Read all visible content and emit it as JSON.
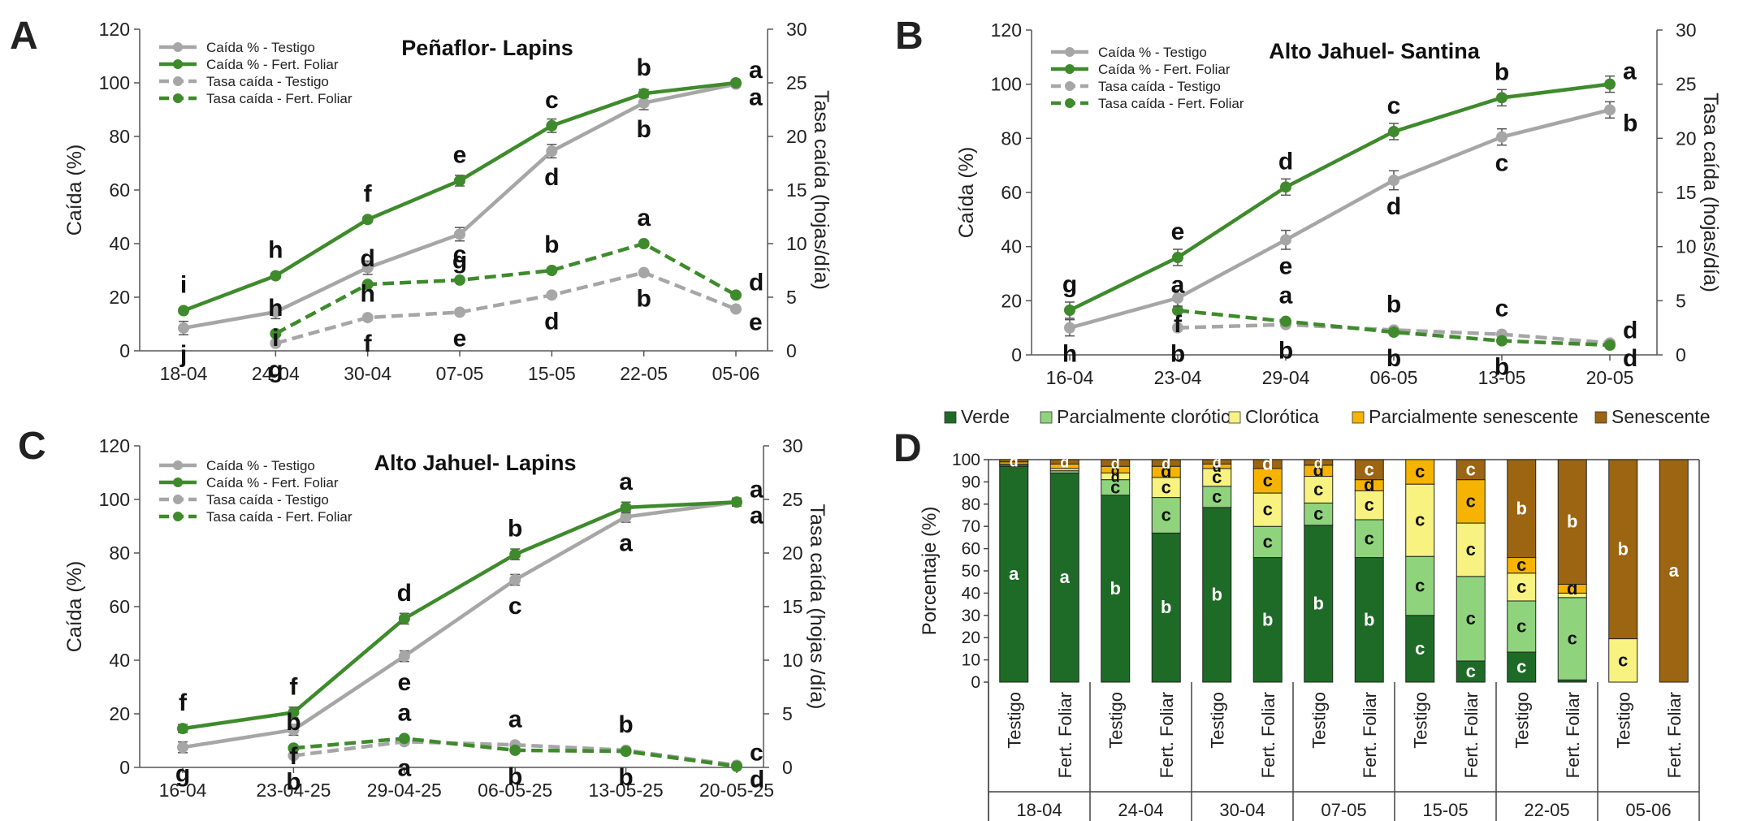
{
  "colors": {
    "testigo": "#a6a6a6",
    "fert": "#3e8a2c",
    "verde": "#1e6b27",
    "parcialmente_clorotica": "#8fd47d",
    "clorotica": "#f8f280",
    "parcialmente_senescente": "#f6b400",
    "senescente": "#9b6511"
  },
  "chart_data": [
    {
      "panel": "A",
      "type": "line",
      "title": "Peñaflor- Lapins",
      "xlabel": "",
      "ylabel": "Caída (%)",
      "y2label": "Tasa caída (hojas/día)",
      "ylim": [
        0,
        120
      ],
      "y2lim": [
        0,
        30
      ],
      "yticks": [
        0,
        20,
        40,
        60,
        80,
        100,
        120
      ],
      "y2ticks": [
        0,
        5,
        10,
        15,
        20,
        25,
        30
      ],
      "legend_position": "top-left",
      "categories": [
        "18-04",
        "24-04",
        "30-04",
        "07-05",
        "15-05",
        "22-05",
        "05-06"
      ],
      "series": [
        {
          "name": "Caída % - Testigo",
          "axis": "left",
          "style": "solid",
          "color": "testigo",
          "values": [
            8.5,
            14.5,
            31,
            43.5,
            74.5,
            92.5,
            99.5
          ],
          "errors": [
            2.5,
            2.5,
            2.5,
            2.5,
            2.5,
            2.5,
            1.0
          ],
          "labels": [
            "j",
            "i",
            "h",
            "g",
            "d",
            "b",
            "a"
          ]
        },
        {
          "name": "Caída % - Fert. Foliar",
          "axis": "left",
          "style": "solid",
          "color": "fert",
          "values": [
            15,
            28,
            49,
            63.5,
            84,
            96,
            100
          ],
          "errors": [
            1.0,
            1.0,
            1.0,
            2.0,
            2.5,
            1.5,
            1.0
          ],
          "labels": [
            "i",
            "h",
            "f",
            "e",
            "c",
            "b",
            "a"
          ]
        },
        {
          "name": "Tasa caída - Testigo",
          "axis": "right",
          "style": "dashed",
          "color": "testigo",
          "values": [
            null,
            0.7,
            3.1,
            3.6,
            5.2,
            7.3,
            3.9
          ],
          "labels": [
            null,
            "g",
            "f",
            "e",
            "d",
            "b",
            "e"
          ]
        },
        {
          "name": "Tasa caída - Fert. Foliar",
          "axis": "right",
          "style": "dashed",
          "color": "fert",
          "values": [
            null,
            1.6,
            6.2,
            6.6,
            7.5,
            10.0,
            5.2
          ],
          "labels": [
            null,
            "h",
            "d",
            "c",
            "b",
            "a",
            "d"
          ]
        }
      ]
    },
    {
      "panel": "B",
      "type": "line",
      "title": "Alto Jahuel- Santina",
      "xlabel": "",
      "ylabel": "Caída (%)",
      "y2label": "Tasa caída (hojas/día)",
      "ylim": [
        0,
        120
      ],
      "y2lim": [
        0,
        30
      ],
      "yticks": [
        0,
        20,
        40,
        60,
        80,
        100,
        120
      ],
      "y2ticks": [
        0,
        5,
        10,
        15,
        20,
        25,
        30
      ],
      "legend_position": "top-left",
      "categories": [
        "16-04",
        "23-04",
        "29-04",
        "06-05",
        "13-05",
        "20-05"
      ],
      "series": [
        {
          "name": "Caída % - Testigo",
          "axis": "left",
          "style": "solid",
          "color": "testigo",
          "values": [
            10,
            21,
            42.5,
            64.5,
            80.5,
            90.5
          ],
          "errors": [
            3.0,
            3.0,
            3.5,
            3.5,
            3.0,
            3.0
          ],
          "labels": [
            "h",
            "f",
            "e",
            "d",
            "c",
            "b"
          ]
        },
        {
          "name": "Caída % - Fert. Foliar",
          "axis": "left",
          "style": "solid",
          "color": "fert",
          "values": [
            16.5,
            36,
            62,
            82.5,
            95,
            100
          ],
          "errors": [
            3.0,
            3.0,
            3.0,
            3.0,
            3.0,
            3.0
          ],
          "labels": [
            "g",
            "e",
            "d",
            "c",
            "b",
            "a"
          ]
        },
        {
          "name": "Tasa caída - Testigo",
          "axis": "right",
          "style": "dashed",
          "color": "testigo",
          "values": [
            null,
            2.5,
            2.8,
            2.3,
            1.9,
            1.1
          ],
          "labels": [
            null,
            "b",
            "b",
            "b",
            "c",
            "d"
          ]
        },
        {
          "name": "Tasa caída - Fert. Foliar",
          "axis": "right",
          "style": "dashed",
          "color": "fert",
          "values": [
            null,
            4.1,
            3.1,
            2.1,
            1.3,
            0.9
          ],
          "labels": [
            null,
            "a",
            "a",
            "b",
            "b",
            "d"
          ]
        }
      ]
    },
    {
      "panel": "C",
      "type": "line",
      "title": "Alto Jahuel- Lapins",
      "xlabel": "",
      "ylabel": "Caída (%)",
      "y2label": "Tasa caída (hojas /día)",
      "ylim": [
        0,
        120
      ],
      "y2lim": [
        0,
        30
      ],
      "yticks": [
        0,
        20,
        40,
        60,
        80,
        100,
        120
      ],
      "y2ticks": [
        0,
        5,
        10,
        15,
        20,
        25,
        30
      ],
      "legend_position": "top-left",
      "categories": [
        "16-04",
        "23-04-25",
        "29-04-25",
        "06-05-25",
        "13-05-25",
        "20-05-25"
      ],
      "series": [
        {
          "name": "Caída % - Testigo",
          "axis": "left",
          "style": "solid",
          "color": "testigo",
          "values": [
            7.5,
            14,
            41.5,
            70,
            93.5,
            99
          ],
          "errors": [
            2.0,
            2.0,
            2.0,
            2.0,
            2.0,
            1.5
          ],
          "labels": [
            "g",
            "f",
            "e",
            "c",
            "a",
            "a"
          ]
        },
        {
          "name": "Caída % - Fert. Foliar",
          "axis": "left",
          "style": "solid",
          "color": "fert",
          "values": [
            14.5,
            20.5,
            55.5,
            79.5,
            97,
            99
          ],
          "errors": [
            1.5,
            2.0,
            2.0,
            2.0,
            2.0,
            1.5
          ],
          "labels": [
            "f",
            "f",
            "d",
            "b",
            "a",
            "a"
          ]
        },
        {
          "name": "Tasa caída - Testigo",
          "axis": "right",
          "style": "dashed",
          "color": "testigo",
          "values": [
            null,
            1.1,
            2.4,
            2.1,
            1.6,
            0.2
          ],
          "labels": [
            null,
            "b",
            "a",
            "a",
            "b",
            "c"
          ]
        },
        {
          "name": "Tasa caída - Fert. Foliar",
          "axis": "right",
          "style": "dashed",
          "color": "fert",
          "values": [
            null,
            1.8,
            2.7,
            1.6,
            1.5,
            0.1
          ],
          "labels": [
            null,
            "b",
            "a",
            "b",
            "b",
            "d"
          ]
        }
      ]
    },
    {
      "panel": "D",
      "type": "bar",
      "stacked": true,
      "title": "",
      "xlabel": "",
      "ylabel": "Porcentaje (%)",
      "ylim": [
        0,
        100
      ],
      "yticks": [
        0,
        10,
        20,
        30,
        40,
        50,
        60,
        70,
        80,
        90,
        100
      ],
      "legend_position": "top",
      "dates": [
        "18-04",
        "24-04",
        "30-04",
        "07-05",
        "15-05",
        "22-05",
        "05-06"
      ],
      "treatments": [
        "Testigo",
        "Fert. Foliar"
      ],
      "stack_order": [
        "Verde",
        "Parcialmente clorótica",
        "Clorótica",
        "Parcialmente senescente",
        "Senescente"
      ],
      "stack_colors": [
        "verde",
        "parcialmente_clorotica",
        "clorotica",
        "parcialmente_senescente",
        "senescente"
      ],
      "bars": [
        {
          "date": "18-04",
          "treatment": "Testigo",
          "values": [
            97,
            0.5,
            0.5,
            1,
            1
          ],
          "labels": [
            "a",
            "",
            "",
            "",
            "d"
          ]
        },
        {
          "date": "18-04",
          "treatment": "Fert. Foliar",
          "values": [
            94,
            1,
            1,
            2,
            2
          ],
          "labels": [
            "a",
            "",
            "",
            "",
            "d"
          ]
        },
        {
          "date": "24-04",
          "treatment": "Testigo",
          "values": [
            84,
            7,
            3,
            3,
            3
          ],
          "labels": [
            "b",
            "c",
            "d",
            "d",
            "d"
          ]
        },
        {
          "date": "24-04",
          "treatment": "Fert. Foliar",
          "values": [
            67,
            16,
            9,
            5,
            3
          ],
          "labels": [
            "b",
            "c",
            "c",
            "d",
            "d"
          ]
        },
        {
          "date": "30-04",
          "treatment": "Testigo",
          "values": [
            78.5,
            9.5,
            8,
            2,
            2
          ],
          "labels": [
            "b",
            "c",
            "c",
            "d",
            "d"
          ]
        },
        {
          "date": "30-04",
          "treatment": "Fert. Foliar",
          "values": [
            56,
            14,
            15,
            11,
            4
          ],
          "labels": [
            "b",
            "c",
            "c",
            "c",
            "d"
          ]
        },
        {
          "date": "07-05",
          "treatment": "Testigo",
          "values": [
            70.5,
            10,
            12,
            5,
            2.5
          ],
          "labels": [
            "b",
            "c",
            "c",
            "d",
            "d"
          ]
        },
        {
          "date": "07-05",
          "treatment": "Fert. Foliar",
          "values": [
            56,
            17,
            13,
            5,
            9
          ],
          "labels": [
            "b",
            "c",
            "c",
            "d",
            "c"
          ]
        },
        {
          "date": "15-05",
          "treatment": "Testigo",
          "values": [
            30,
            26.5,
            32.5,
            11,
            0
          ],
          "labels": [
            "c",
            "c",
            "c",
            "c",
            ""
          ]
        },
        {
          "date": "15-05",
          "treatment": "Fert. Foliar",
          "values": [
            9.5,
            38,
            24,
            19.5,
            9
          ],
          "labels": [
            "c",
            "c",
            "c",
            "c",
            "c"
          ]
        },
        {
          "date": "22-05",
          "treatment": "Testigo",
          "values": [
            13.5,
            23,
            12.5,
            7,
            44
          ],
          "labels": [
            "c",
            "c",
            "c",
            "c",
            "b"
          ]
        },
        {
          "date": "22-05",
          "treatment": "Fert. Foliar",
          "values": [
            1,
            37,
            2,
            4,
            56
          ],
          "labels": [
            "",
            "c",
            "",
            "d",
            "b"
          ]
        },
        {
          "date": "05-06",
          "treatment": "Testigo",
          "values": [
            0,
            0,
            19.5,
            0,
            80.5
          ],
          "labels": [
            "",
            "",
            "c",
            "",
            "b"
          ]
        },
        {
          "date": "05-06",
          "treatment": "Fert. Foliar",
          "values": [
            0,
            0,
            0,
            0,
            100
          ],
          "labels": [
            "",
            "",
            "",
            "",
            "a"
          ]
        }
      ]
    }
  ]
}
